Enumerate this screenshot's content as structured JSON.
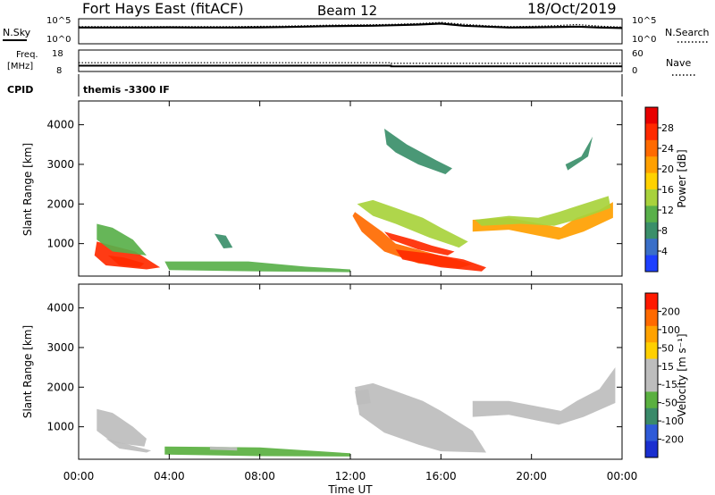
{
  "header": {
    "title": "Fort Hays East (fitACF)",
    "beam": "Beam 12",
    "date": "18/Oct/2019",
    "cpid_label": "CPID",
    "cpid_text": "themis -3300 IF"
  },
  "colors": {
    "power": [
      "#1e40ff",
      "#3a6fc8",
      "#3b8f6a",
      "#59b04a",
      "#a8d23c",
      "#ffd200",
      "#ffa000",
      "#ff6a00",
      "#ff2a00",
      "#e80000"
    ],
    "velocity": [
      "#1a2fd0",
      "#2f5bd8",
      "#3a8a6a",
      "#5ab040",
      "#bdbdbd",
      "#bdbdbd",
      "#ffd000",
      "#ffa200",
      "#ff6a00",
      "#ff1a00"
    ],
    "noise_line": "#000000"
  },
  "chart_data": [
    {
      "type": "line",
      "panel": "noise",
      "left_label": "N.Sky",
      "right_label": "N.Search",
      "left_ticks": [
        "10^5",
        "10^0"
      ],
      "right_ticks": [
        "10^5",
        "10^0"
      ],
      "series": [
        {
          "name": "N.Sky",
          "style": "solid",
          "x": [
            0,
            1,
            2,
            3,
            4,
            5,
            6,
            7,
            8,
            9,
            10,
            11,
            12,
            13,
            14,
            15,
            16,
            17,
            18,
            19,
            20,
            21,
            22,
            23,
            24
          ],
          "values": [
            3.3,
            3.3,
            3.3,
            3.3,
            3.35,
            3.3,
            3.3,
            3.3,
            3.35,
            3.4,
            3.5,
            3.6,
            3.65,
            3.7,
            3.8,
            3.95,
            4.15,
            3.7,
            3.5,
            3.3,
            3.35,
            3.4,
            3.5,
            3.3,
            3.2
          ]
        },
        {
          "name": "N.Search",
          "style": "dotted",
          "x": [
            0,
            1,
            2,
            3,
            4,
            5,
            6,
            7,
            8,
            9,
            10,
            11,
            12,
            13,
            14,
            15,
            16,
            17,
            18,
            19,
            20,
            21,
            22,
            23,
            24
          ],
          "values": [
            3.5,
            3.5,
            3.5,
            3.5,
            3.5,
            3.5,
            3.5,
            3.5,
            3.55,
            3.6,
            3.7,
            3.8,
            3.85,
            3.9,
            4.0,
            4.15,
            4.4,
            4.0,
            3.7,
            3.5,
            3.55,
            3.7,
            3.95,
            3.6,
            3.4
          ]
        }
      ]
    },
    {
      "type": "line",
      "panel": "frequency",
      "left_label": "Freq.",
      "left_unit": "[MHz]",
      "right_label": "Nave",
      "left_ticks": [
        "18",
        "8"
      ],
      "right_ticks": [
        "60",
        "0"
      ],
      "ylim": [
        8,
        18
      ],
      "series": [
        {
          "name": "Freq.",
          "style": "solid",
          "x": [
            0,
            13.8,
            13.8,
            24
          ],
          "values": [
            10.5,
            10.5,
            10.2,
            10.2
          ]
        },
        {
          "name": "Nave",
          "style": "dotted",
          "x": [
            0,
            13.8,
            13.8,
            24
          ],
          "values": [
            24,
            24,
            22,
            22
          ]
        }
      ]
    },
    {
      "type": "heatmap",
      "panel": "power",
      "ylabel": "Slant Range [km]",
      "yticks": [
        "4000",
        "3000",
        "2000",
        "1000"
      ],
      "ylim": [
        180,
        4600
      ],
      "colorbar_label": "Power [dB]",
      "colorbar_ticks": [
        "28",
        "24",
        "20",
        "16",
        "12",
        "8",
        "4"
      ],
      "clim": [
        0,
        32
      ],
      "regions": [
        {
          "path": [
            [
              0.8,
              1050
            ],
            [
              2.5,
              800
            ],
            [
              3.6,
              400
            ],
            [
              3,
              350
            ],
            [
              1.2,
              450
            ],
            [
              0.7,
              700
            ]
          ],
          "value": 26
        },
        {
          "path": [
            [
              0.8,
              1500
            ],
            [
              1.5,
              1400
            ],
            [
              2.4,
              1100
            ],
            [
              3,
              700
            ],
            [
              1.5,
              800
            ],
            [
              0.8,
              1100
            ]
          ],
          "value": 12
        },
        {
          "path": [
            [
              1.3,
              700
            ],
            [
              2,
              650
            ],
            [
              2.9,
              500
            ],
            [
              2.7,
              400
            ],
            [
              1.8,
              450
            ]
          ],
          "value": 27
        },
        {
          "path": [
            [
              3.8,
              550
            ],
            [
              7.5,
              550
            ],
            [
              10,
              420
            ],
            [
              12,
              350
            ],
            [
              12,
              280
            ],
            [
              8,
              300
            ],
            [
              4,
              330
            ]
          ],
          "value": 10
        },
        {
          "path": [
            [
              6,
              1250
            ],
            [
              6.5,
              1200
            ],
            [
              6.8,
              900
            ],
            [
              6.4,
              880
            ]
          ],
          "value": 9
        },
        {
          "path": [
            [
              12.2,
              1800
            ],
            [
              13.4,
              1300
            ],
            [
              14,
              1000
            ],
            [
              15.3,
              800
            ],
            [
              17.4,
              480
            ],
            [
              16.8,
              380
            ],
            [
              15,
              500
            ],
            [
              13.5,
              800
            ],
            [
              12.5,
              1300
            ],
            [
              12.1,
              1700
            ]
          ],
          "value": 25
        },
        {
          "path": [
            [
              12.3,
              2000
            ],
            [
              13,
              2100
            ],
            [
              14,
              1900
            ],
            [
              15.2,
              1650
            ],
            [
              16,
              1400
            ],
            [
              17.2,
              1050
            ],
            [
              16.8,
              900
            ],
            [
              15.5,
              1150
            ],
            [
              14,
              1500
            ],
            [
              13,
              1700
            ]
          ],
          "value": 13
        },
        {
          "path": [
            [
              13.5,
              1300
            ],
            [
              14.8,
              1100
            ],
            [
              15.6,
              950
            ],
            [
              16.6,
              800
            ],
            [
              16.3,
              700
            ],
            [
              15,
              850
            ],
            [
              13.8,
              1100
            ]
          ],
          "value": 27
        },
        {
          "path": [
            [
              14,
              850
            ],
            [
              15.5,
              750
            ],
            [
              17,
              600
            ],
            [
              18,
              400
            ],
            [
              17.8,
              300
            ],
            [
              16,
              400
            ],
            [
              14.3,
              600
            ]
          ],
          "value": 28
        },
        {
          "path": [
            [
              17.4,
              1600
            ],
            [
              19,
              1650
            ],
            [
              20.4,
              1500
            ],
            [
              21.3,
              1400
            ],
            [
              22,
              1650
            ],
            [
              23,
              1850
            ],
            [
              23.6,
              2050
            ],
            [
              23.6,
              1650
            ],
            [
              22.3,
              1300
            ],
            [
              21.2,
              1100
            ],
            [
              20.3,
              1200
            ],
            [
              19,
              1350
            ],
            [
              17.4,
              1300
            ]
          ],
          "value": 22
        },
        {
          "path": [
            [
              17.5,
              1600
            ],
            [
              19,
              1700
            ],
            [
              20.3,
              1650
            ],
            [
              21.2,
              1800
            ],
            [
              22.3,
              2000
            ],
            [
              23.4,
              2200
            ],
            [
              23.5,
              1900
            ],
            [
              22.3,
              1650
            ],
            [
              21,
              1450
            ],
            [
              19.5,
              1500
            ],
            [
              17.8,
              1450
            ]
          ],
          "value": 13
        },
        {
          "path": [
            [
              13.5,
              3900
            ],
            [
              14.5,
              3500
            ],
            [
              15.8,
              3100
            ],
            [
              16.5,
              2900
            ],
            [
              16.2,
              2750
            ],
            [
              15,
              3000
            ],
            [
              14,
              3300
            ],
            [
              13.6,
              3500
            ]
          ],
          "value": 8
        },
        {
          "path": [
            [
              21.5,
              3000
            ],
            [
              22.2,
              3200
            ],
            [
              22.7,
              3700
            ],
            [
              22.5,
              3200
            ],
            [
              21.6,
              2850
            ]
          ],
          "value": 8
        }
      ]
    },
    {
      "type": "heatmap",
      "panel": "velocity",
      "ylabel": "Slant Range [km]",
      "yticks": [
        "4000",
        "3000",
        "2000",
        "1000"
      ],
      "ylim": [
        180,
        4600
      ],
      "colorbar_label": "Velocity [m s⁻¹]",
      "colorbar_ticks": [
        "200",
        "100",
        "50",
        "15",
        "-15",
        "-50",
        "-100",
        "-200"
      ],
      "clim": [
        -250,
        250
      ],
      "regions": [
        {
          "path": [
            [
              0.8,
              1450
            ],
            [
              1.5,
              1350
            ],
            [
              2.4,
              1000
            ],
            [
              3,
              700
            ],
            [
              2.9,
              500
            ],
            [
              1.5,
              600
            ],
            [
              0.8,
              900
            ]
          ],
          "value": 0
        },
        {
          "path": [
            [
              1.2,
              700
            ],
            [
              2.2,
              550
            ],
            [
              3.2,
              400
            ],
            [
              3,
              350
            ],
            [
              1.8,
              450
            ]
          ],
          "value": 30
        },
        {
          "path": [
            [
              3.8,
              500
            ],
            [
              8,
              480
            ],
            [
              12,
              330
            ],
            [
              12,
              250
            ],
            [
              8,
              260
            ],
            [
              3.8,
              300
            ]
          ],
          "value": -60
        },
        {
          "path": [
            [
              5.8,
              500
            ],
            [
              7,
              480
            ],
            [
              7,
              400
            ],
            [
              5.8,
              420
            ]
          ],
          "value": 30
        },
        {
          "path": [
            [
              12.2,
              2000
            ],
            [
              13,
              2100
            ],
            [
              14,
              1900
            ],
            [
              15.2,
              1650
            ],
            [
              16,
              1400
            ],
            [
              17.4,
              900
            ],
            [
              18,
              350
            ],
            [
              16,
              380
            ],
            [
              15,
              550
            ],
            [
              13.5,
              850
            ],
            [
              12.4,
              1300
            ]
          ],
          "value": 0
        },
        {
          "path": [
            [
              17.4,
              1650
            ],
            [
              19,
              1650
            ],
            [
              20.4,
              1500
            ],
            [
              21.3,
              1400
            ],
            [
              22,
              1650
            ],
            [
              23,
              1950
            ],
            [
              23.7,
              2500
            ],
            [
              23.7,
              1600
            ],
            [
              22.3,
              1250
            ],
            [
              21.2,
              1050
            ],
            [
              20.3,
              1150
            ],
            [
              19,
              1300
            ],
            [
              17.4,
              1250
            ]
          ],
          "value": 0
        },
        {
          "path": [
            [
              12.2,
              1900
            ],
            [
              12.8,
              1950
            ],
            [
              12.9,
              1600
            ],
            [
              12.3,
              1550
            ]
          ],
          "value": 30
        }
      ]
    }
  ],
  "time_axis": {
    "xlabel": "Time UT",
    "ticks": [
      "00:00",
      "04:00",
      "08:00",
      "12:00",
      "16:00",
      "20:00",
      "00:00"
    ],
    "xlim": [
      0,
      24
    ]
  }
}
